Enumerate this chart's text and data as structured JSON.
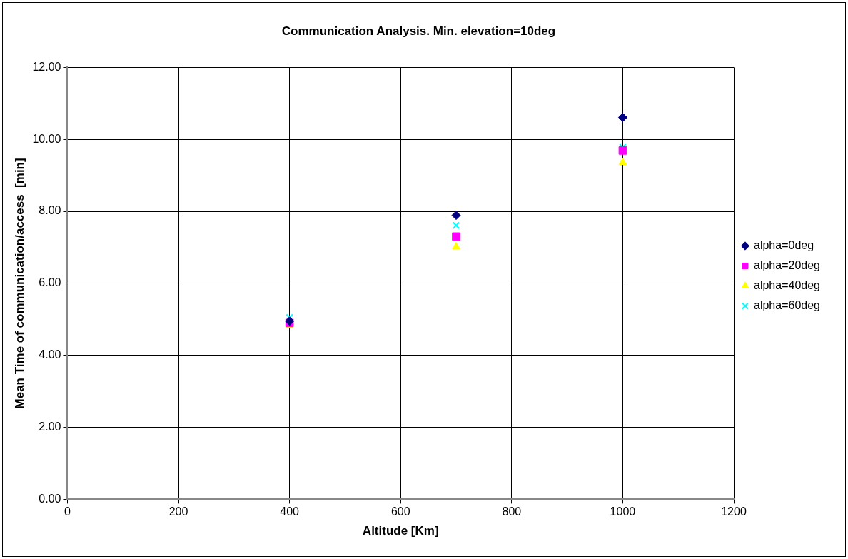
{
  "chart_data": {
    "type": "scatter",
    "title": "Communication Analysis. Min. elevation=10deg",
    "xlabel": "Altitude [Km]",
    "ylabel": "Mean Time of communication/access  [min]",
    "x": [
      400,
      700,
      1000
    ],
    "series": [
      {
        "name": "alpha=0deg",
        "color": "#000080",
        "marker": "diamond",
        "values": [
          4.95,
          7.89,
          10.61
        ]
      },
      {
        "name": "alpha=20deg",
        "color": "#ff00ff",
        "marker": "square",
        "values": [
          4.9,
          7.3,
          9.69
        ]
      },
      {
        "name": "alpha=40deg",
        "color": "#ffff00",
        "marker": "triangle",
        "values": [
          4.82,
          7.02,
          9.36
        ]
      },
      {
        "name": "alpha=60deg",
        "color": "#00ffff",
        "marker": "cross",
        "values": [
          5.05,
          7.61,
          9.78
        ]
      }
    ],
    "xlim": [
      0,
      1200
    ],
    "xticks": [
      0,
      200,
      400,
      600,
      800,
      1000,
      1200
    ],
    "ylim": [
      0,
      12
    ],
    "yticks": [
      {
        "value": 0,
        "label": "0.00"
      },
      {
        "value": 2,
        "label": "2.00"
      },
      {
        "value": 4,
        "label": "4.00"
      },
      {
        "value": 6,
        "label": "6.00"
      },
      {
        "value": 8,
        "label": "8.00"
      },
      {
        "value": 10,
        "label": "10.00"
      },
      {
        "value": 12,
        "label": "12.00"
      }
    ],
    "grid": true,
    "legend": "right"
  }
}
